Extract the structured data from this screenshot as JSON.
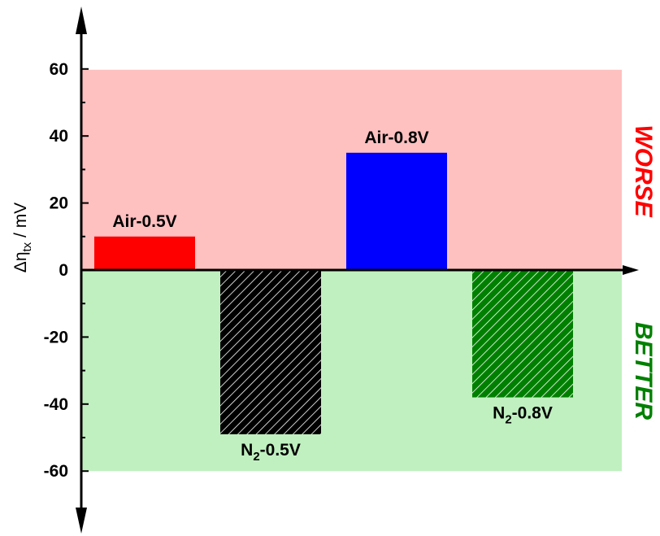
{
  "chart_data": {
    "type": "bar",
    "categories": [
      "Air-0.5V",
      "N2-0.5V",
      "Air-0.8V",
      "N2-0.8V"
    ],
    "values": [
      10,
      -49,
      35,
      -38
    ],
    "bars": [
      {
        "label_main": "Air-0.5V",
        "label_sub": "",
        "label_tail": "",
        "value": 10,
        "color": "#ff0000",
        "hatched": false
      },
      {
        "label_main": "N",
        "label_sub": "2",
        "label_tail": "-0.5V",
        "value": -49,
        "color": "#000000",
        "hatched": true
      },
      {
        "label_main": "Air-0.8V",
        "label_sub": "",
        "label_tail": "",
        "value": 35,
        "color": "#0000ff",
        "hatched": false
      },
      {
        "label_main": "N",
        "label_sub": "2",
        "label_tail": "-0.8V",
        "value": -38,
        "color": "#008000",
        "hatched": true
      }
    ],
    "ylabel": {
      "prefix": "Δη",
      "sub": "tx",
      "suffix": " / mV"
    },
    "ylim": [
      -60,
      60
    ],
    "yticks": [
      "60",
      "40",
      "20",
      "0",
      "-20",
      "-40",
      "-60"
    ],
    "regions": {
      "worse": {
        "label": "WORSE",
        "range": [
          0,
          60
        ],
        "fill": "#ffc0c0",
        "text_color": "#ff0000"
      },
      "better": {
        "label": "BETTER",
        "range": [
          -60,
          0
        ],
        "fill": "#c0f0c0",
        "text_color": "#008000"
      }
    }
  }
}
